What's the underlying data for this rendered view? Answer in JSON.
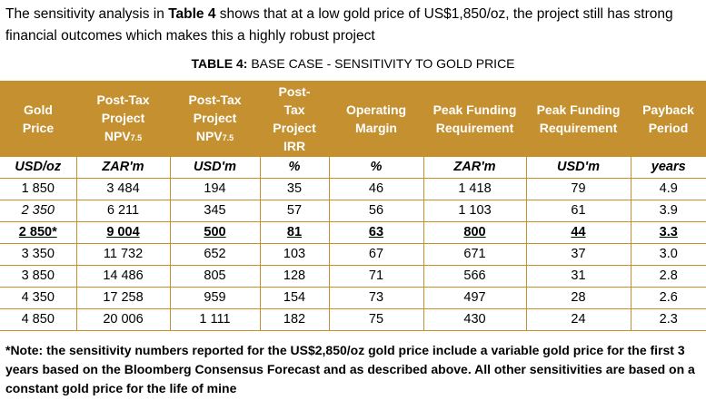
{
  "intro": {
    "pre": "The sensitivity analysis in ",
    "bold": "Table 4",
    "post": " shows that at a low gold price of US$1,850/oz, the project still has strong financial outcomes which makes this a highly robust project"
  },
  "title": {
    "bold": "TABLE 4:",
    "rest": " BASE CASE - SENSITIVITY TO GOLD PRICE"
  },
  "headers": [
    [
      "Gold",
      "Price"
    ],
    [
      "Post-Tax",
      "Project",
      "NPV",
      "7.5"
    ],
    [
      "Post-Tax",
      "Project",
      "NPV",
      "7.5"
    ],
    [
      "Post-",
      "Tax",
      "Project",
      "IRR"
    ],
    [
      "Operating",
      "Margin"
    ],
    [
      "Peak Funding",
      "Requirement"
    ],
    [
      "Peak Funding",
      "Requirement"
    ],
    [
      "Payback",
      "Period"
    ]
  ],
  "units": [
    "USD/oz",
    "ZAR'm",
    "USD'm",
    "%",
    "%",
    "ZAR'm",
    "USD'm",
    "years"
  ],
  "rows": [
    [
      "1 850",
      "3 484",
      "194",
      "35",
      "46",
      "1 418",
      "79",
      "4.9"
    ],
    [
      "2 350",
      "6 211",
      "345",
      "57",
      "56",
      "1 103",
      "61",
      "3.9"
    ],
    [
      "2 850*",
      "9 004",
      "500",
      "81",
      "63",
      "800",
      "44",
      "3.3"
    ],
    [
      "3 350",
      "11 732",
      "652",
      "103",
      "67",
      "671",
      "37",
      "3.0"
    ],
    [
      "3 850",
      "14 486",
      "805",
      "128",
      "71",
      "566",
      "31",
      "2.8"
    ],
    [
      "4 350",
      "17 258",
      "959",
      "154",
      "73",
      "497",
      "28",
      "2.6"
    ],
    [
      "4 850",
      "20 006",
      "1 111",
      "182",
      "75",
      "430",
      "24",
      "2.3"
    ]
  ],
  "note": "*Note: the sensitivity numbers reported for the US$2,850/oz gold price include a variable gold price for the first 3 years based on the Bloomberg Consensus Forecast and as described above.  All other sensitivities are based on a constant gold price for the life of mine"
}
